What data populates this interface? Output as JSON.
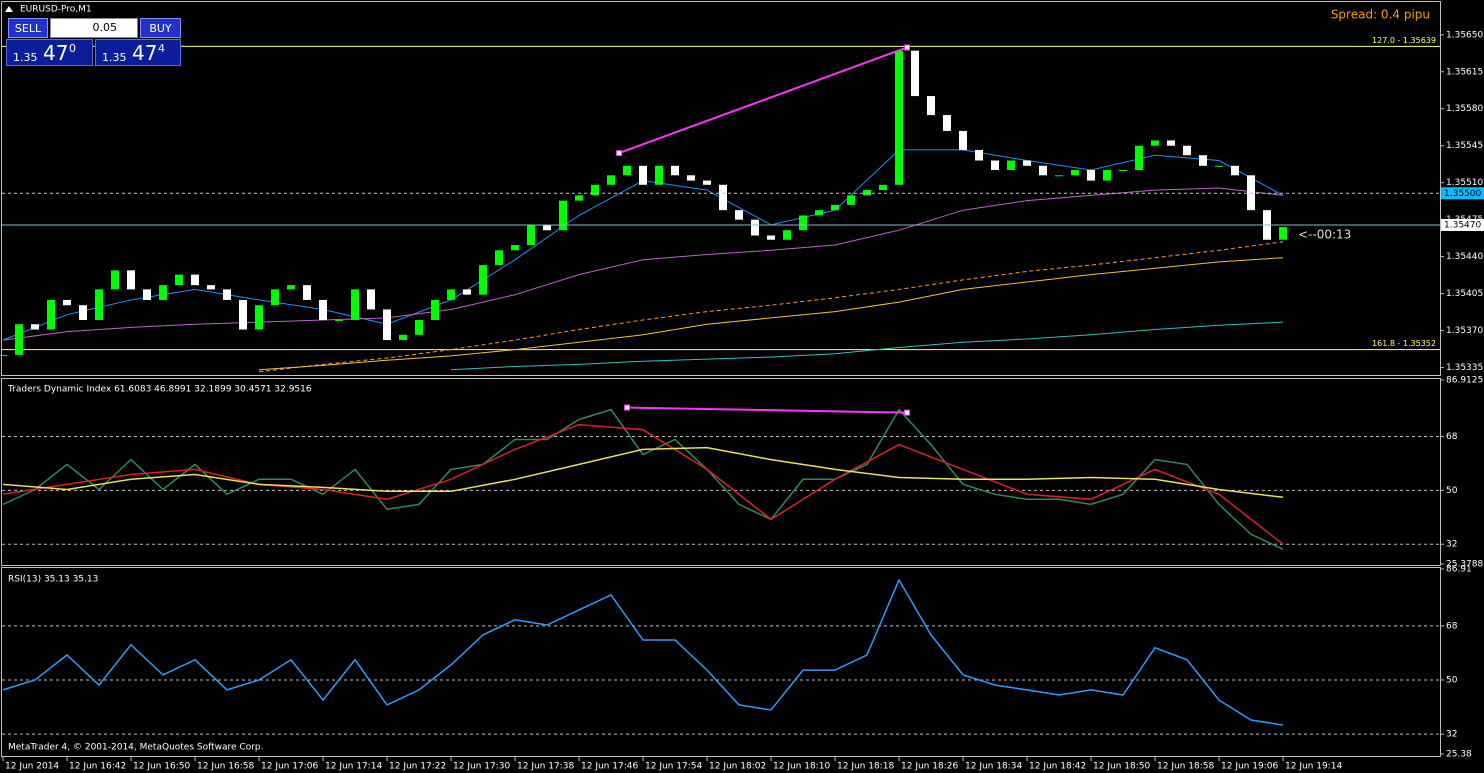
{
  "header": {
    "symbol": "EURUSD-Pro,M1",
    "spread": "Spread: 0.4 pipu",
    "countdown": "<--00:13",
    "copyright": "MetaTrader 4, © 2001-2014, MetaQuotes Software Corp."
  },
  "trade_panel": {
    "sell": "SELL",
    "lot": "0.05",
    "buy": "BUY",
    "bid": {
      "big": "1.35",
      "pips": "47",
      "frac": "0"
    },
    "ask": {
      "big": "1.35",
      "pips": "47",
      "frac": "4"
    }
  },
  "chart_data": [
    {
      "type": "candlestick",
      "up_color": "#00ff00",
      "down_color": "#ffffff",
      "x": [
        0,
        2,
        4,
        6,
        8,
        10,
        12,
        14,
        16,
        18,
        20,
        22,
        24,
        26,
        28,
        30,
        32,
        34,
        36,
        38,
        40,
        42,
        44,
        46,
        48,
        50,
        52,
        54,
        56,
        58,
        60,
        62,
        64,
        66,
        68,
        70,
        72,
        74,
        76,
        78,
        80,
        82,
        84,
        86,
        88,
        90,
        92,
        94,
        96,
        98,
        100,
        102,
        104,
        106,
        108,
        110,
        112,
        114,
        116,
        118,
        120,
        122,
        124,
        126,
        128,
        130,
        132,
        134,
        136,
        138,
        140,
        142,
        144,
        146,
        148,
        150,
        152,
        154,
        156,
        158,
        160
      ],
      "values": [
        1.35347,
        1.35376,
        1.35371,
        1.35399,
        1.35394,
        1.3538,
        1.35409,
        1.35427,
        1.35409,
        1.35399,
        1.35413,
        1.35423,
        1.35413,
        1.35409,
        1.35399,
        1.35371,
        1.35394,
        1.35409,
        1.35413,
        1.35399,
        1.3538,
        1.3538,
        1.35409,
        1.3539,
        1.35361,
        1.35366,
        1.3538,
        1.35399,
        1.35409,
        1.35404,
        1.35432,
        1.35446,
        1.35451,
        1.3547,
        1.35465,
        1.35493,
        1.35498,
        1.35508,
        1.35517,
        1.35526,
        1.35508,
        1.35526,
        1.35517,
        1.35512,
        1.35508,
        1.35484,
        1.35475,
        1.3546,
        1.35456,
        1.35465,
        1.35479,
        1.35484,
        1.35489,
        1.35498,
        1.35503,
        1.35508,
        1.35635,
        1.35592,
        1.35574,
        1.35559,
        1.35541,
        1.35531,
        1.35522,
        1.35531,
        1.35526,
        1.35517,
        1.35517,
        1.35522,
        1.35512,
        1.35522,
        1.35522,
        1.35545,
        1.3555,
        1.35545,
        1.35536,
        1.35526,
        1.35526,
        1.35517,
        1.35484,
        1.35456,
        1.35468
      ],
      "ylim": [
        1.35327,
        1.35682
      ],
      "yticks": [
        {
          "value": 1.3565,
          "label": "1.35650"
        },
        {
          "value": 1.35615,
          "label": "1.35615"
        },
        {
          "value": 1.3558,
          "label": "1.35580"
        },
        {
          "value": 1.35545,
          "label": "1.35545"
        },
        {
          "value": 1.3551,
          "label": "1.35510"
        },
        {
          "value": 1.35475,
          "label": "1.35475"
        },
        {
          "value": 1.3544,
          "label": "1.35440"
        },
        {
          "value": 1.35405,
          "label": "1.35405"
        },
        {
          "value": 1.3537,
          "label": "1.35370"
        },
        {
          "value": 1.35335,
          "label": "1.35335"
        }
      ],
      "xlim": [
        -0.375,
        179.625
      ],
      "xticks": [
        {
          "value": 0,
          "label": "12 Jun 2014"
        },
        {
          "value": 8,
          "label": "12 Jun 16:42"
        },
        {
          "value": 16,
          "label": "12 Jun 16:50"
        },
        {
          "value": 24,
          "label": "12 Jun 16:58"
        },
        {
          "value": 32,
          "label": "12 Jun 17:06"
        },
        {
          "value": 40,
          "label": "12 Jun 17:14"
        },
        {
          "value": 48,
          "label": "12 Jun 17:22"
        },
        {
          "value": 56,
          "label": "12 Jun 17:30"
        },
        {
          "value": 64,
          "label": "12 Jun 17:38"
        },
        {
          "value": 72,
          "label": "12 Jun 17:46"
        },
        {
          "value": 80,
          "label": "12 Jun 17:54"
        },
        {
          "value": 88,
          "label": "12 Jun 18:02"
        },
        {
          "value": 96,
          "label": "12 Jun 18:10"
        },
        {
          "value": 104,
          "label": "12 Jun 18:18"
        },
        {
          "value": 112,
          "label": "12 Jun 18:26"
        },
        {
          "value": 120,
          "label": "12 Jun 18:34"
        },
        {
          "value": 128,
          "label": "12 Jun 18:42"
        },
        {
          "value": 136,
          "label": "12 Jun 18:50"
        },
        {
          "value": 144,
          "label": "12 Jun 18:58"
        },
        {
          "value": 152,
          "label": "12 Jun 19:06"
        },
        {
          "value": 160,
          "label": "12 Jun 19:14"
        }
      ],
      "moving_averages": {
        "x": [
          0,
          8,
          16,
          24,
          32,
          40,
          48,
          56,
          64,
          72,
          80,
          88,
          96,
          104,
          112,
          120,
          128,
          136,
          144,
          152,
          160
        ],
        "series": [
          {
            "color": "#1e90ff",
            "dashed": false,
            "values": [
              1.35361,
              1.35385,
              1.35399,
              1.35409,
              1.35399,
              1.3539,
              1.35376,
              1.35399,
              1.35437,
              1.35479,
              1.35512,
              1.35503,
              1.3547,
              1.35484,
              1.35541,
              1.35541,
              1.35531,
              1.35522,
              1.35536,
              1.35531,
              1.35498
            ]
          },
          {
            "color": "#c060d0",
            "dashed": false,
            "values": [
              1.35361,
              1.35369,
              1.35373,
              1.35376,
              1.35378,
              1.3538,
              1.35382,
              1.3539,
              1.35404,
              1.35423,
              1.35437,
              1.35442,
              1.35446,
              1.35451,
              1.35465,
              1.35484,
              1.35493,
              1.35498,
              1.35503,
              1.35505,
              1.35498
            ]
          },
          {
            "color": "#ff9933",
            "dashed": true,
            "values": [
              null,
              null,
              null,
              null,
              1.35331,
              1.35338,
              1.35344,
              1.35352,
              1.35361,
              1.35371,
              1.3538,
              1.35388,
              1.35394,
              1.35401,
              1.35409,
              1.35418,
              1.35426,
              1.35432,
              1.35439,
              1.35446,
              1.35454
            ]
          },
          {
            "color": "#f0c040",
            "dashed": false,
            "values": [
              null,
              null,
              null,
              null,
              1.35333,
              1.35337,
              1.35342,
              1.35346,
              1.35352,
              1.35359,
              1.35366,
              1.35376,
              1.35382,
              1.35388,
              1.35397,
              1.35409,
              1.35416,
              1.35423,
              1.35429,
              1.35435,
              1.35439
            ]
          },
          {
            "color": "#30c0c0",
            "dashed": false,
            "values": [
              null,
              null,
              null,
              null,
              null,
              null,
              null,
              1.35333,
              1.35336,
              1.35338,
              1.35341,
              1.35343,
              1.35345,
              1.35348,
              1.35354,
              1.35359,
              1.35362,
              1.35366,
              1.35371,
              1.35375,
              1.35378
            ]
          }
        ]
      },
      "trendline": {
        "color": "#ff33ff",
        "x": [
          77,
          113
        ],
        "values": [
          1.35538,
          1.35638
        ]
      },
      "levels": [
        {
          "value": 1.35639,
          "label": "127.0 - 1.35639",
          "color": "#ffff66"
        },
        {
          "value": 1.35352,
          "label": "161.8 - 1.35352",
          "color": "#ffff66"
        }
      ],
      "price_marks": [
        {
          "value": 1.355,
          "label": "1.35500",
          "color": "#00bfff",
          "dashed": true
        },
        {
          "value": 1.3547,
          "label": "1.35470",
          "color": "#ffffff",
          "dashed": false
        }
      ]
    },
    {
      "type": "line",
      "title": "Traders Dynamic Index 61.6083 46.8991 32.1899 30.4571 32.9516",
      "ylim": [
        25.3788,
        86.9125
      ],
      "yticks": [
        86.9125,
        68,
        50,
        32,
        25.3788
      ],
      "lines": [
        {
          "color": "#2e8b57",
          "x": [
            0,
            4,
            8,
            12,
            16,
            20,
            24,
            28,
            32,
            36,
            40,
            44,
            48,
            52,
            56,
            60,
            64,
            68,
            72,
            76,
            80,
            84,
            88,
            92,
            96,
            100,
            104,
            108,
            112,
            116,
            120,
            124,
            128,
            132,
            136,
            140,
            144,
            148,
            152,
            156,
            160
          ],
          "values": [
            45.3,
            50.3,
            58.7,
            50.3,
            60.3,
            50.3,
            58.7,
            48.7,
            53.7,
            53.7,
            48.7,
            57,
            43.7,
            45.3,
            57,
            58.7,
            67,
            67,
            73.7,
            77,
            62,
            67,
            57,
            45.3,
            40.3,
            53.7,
            53.7,
            58.7,
            77,
            65.3,
            52,
            48.7,
            47,
            47,
            45.3,
            48.7,
            60.3,
            58.7,
            45.3,
            35.3,
            30.3
          ]
        },
        {
          "color": "#dd2222",
          "x": [
            0,
            8,
            16,
            24,
            32,
            40,
            48,
            56,
            64,
            72,
            80,
            88,
            96,
            104,
            112,
            120,
            128,
            136,
            144,
            152,
            160
          ],
          "values": [
            48.7,
            52,
            55.3,
            57,
            52,
            50.3,
            47,
            53.7,
            63.7,
            72,
            70.3,
            57,
            40.3,
            53.7,
            65.3,
            57,
            48.7,
            47,
            57,
            48.7,
            32
          ]
        },
        {
          "color": "#e8e060",
          "x": [
            0,
            8,
            16,
            24,
            32,
            40,
            48,
            56,
            64,
            72,
            80,
            88,
            96,
            104,
            112,
            120,
            128,
            136,
            144,
            152,
            160
          ],
          "values": [
            52,
            50.3,
            53.7,
            55.3,
            52,
            51,
            49.7,
            49.7,
            53.7,
            58.7,
            63.7,
            64.3,
            60.3,
            57,
            54.3,
            53.7,
            53.7,
            54.3,
            53.7,
            50.3,
            47.7
          ]
        }
      ],
      "trendline": {
        "color": "#ff33ff",
        "x": [
          78,
          113
        ],
        "values": [
          77.7,
          76
        ]
      }
    },
    {
      "type": "line",
      "title": "RSI(13) 35.13 35.13",
      "ylim": [
        25.38,
        86.91
      ],
      "yticks": [
        86.91,
        68,
        50,
        32,
        25.38
      ],
      "lines": [
        {
          "color": "#3399ff",
          "x": [
            0,
            4,
            8,
            12,
            16,
            20,
            24,
            28,
            32,
            36,
            40,
            44,
            48,
            52,
            56,
            60,
            64,
            68,
            72,
            76,
            80,
            84,
            88,
            92,
            96,
            100,
            104,
            108,
            112,
            116,
            120,
            124,
            128,
            132,
            136,
            140,
            144,
            148,
            152,
            156,
            160
          ],
          "values": [
            46.7,
            50,
            58.3,
            48.3,
            61.7,
            51.7,
            56.7,
            46.7,
            50,
            56.7,
            43.3,
            56.7,
            41.7,
            46.7,
            55,
            65,
            70,
            68.3,
            73.3,
            78.3,
            63.3,
            63.3,
            53.3,
            41.7,
            40,
            53.3,
            53.3,
            58.3,
            83.3,
            65,
            51.7,
            48.3,
            46.7,
            45,
            46.7,
            45,
            60.7,
            56.7,
            43.3,
            36.7,
            35
          ]
        }
      ]
    }
  ]
}
